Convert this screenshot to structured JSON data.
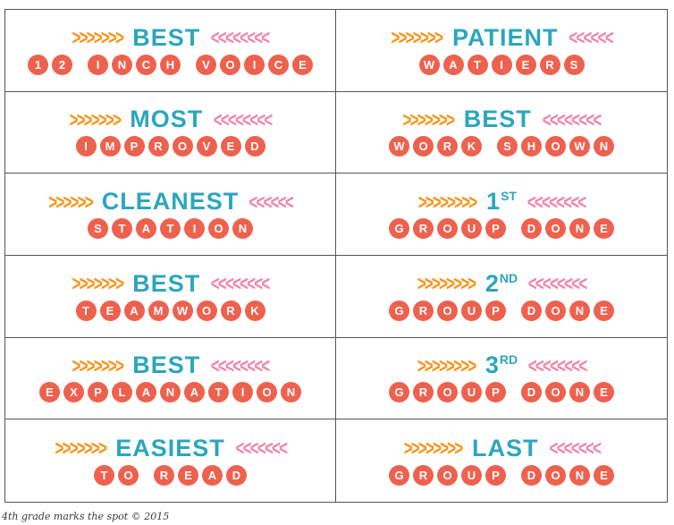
{
  "colors": {
    "teal": "#2ba6bf",
    "orange": "#f7941d",
    "pink": "#f087ac",
    "coral": "#ee614e"
  },
  "footer": {
    "credit": "4th grade marks the spot © 2015"
  },
  "cells": [
    {
      "left_chevrons": ">>>>>>>",
      "title": "BEST",
      "title_sup": "",
      "right_chevrons": "<<<<<<<<",
      "word": "12 INCH VOICE"
    },
    {
      "left_chevrons": ">>>>>>>",
      "title": "PATIENT",
      "title_sup": "",
      "right_chevrons": "<<<<<<",
      "word": "WATIERS"
    },
    {
      "left_chevrons": ">>>>>>>",
      "title": "MOST",
      "title_sup": "",
      "right_chevrons": "<<<<<<<<",
      "word": "IMPROVED"
    },
    {
      "left_chevrons": ">>>>>>>",
      "title": "BEST",
      "title_sup": "",
      "right_chevrons": "<<<<<<<<",
      "word": "WORK SHOWN"
    },
    {
      "left_chevrons": ">>>>>>",
      "title": "CLEANEST",
      "title_sup": "",
      "right_chevrons": "<<<<<<",
      "word": "STATION"
    },
    {
      "left_chevrons": ">>>>>>>>",
      "title": "1",
      "title_sup": "ST",
      "right_chevrons": "<<<<<<<<",
      "word": "GROUP DONE"
    },
    {
      "left_chevrons": ">>>>>>>",
      "title": "BEST",
      "title_sup": "",
      "right_chevrons": "<<<<<<<<",
      "word": "TEAMWORK"
    },
    {
      "left_chevrons": ">>>>>>>>",
      "title": "2",
      "title_sup": "ND",
      "right_chevrons": "<<<<<<<<",
      "word": "GROUP DONE"
    },
    {
      "left_chevrons": ">>>>>>>",
      "title": "BEST",
      "title_sup": "",
      "right_chevrons": "<<<<<<<<",
      "word": "EXPLANATION"
    },
    {
      "left_chevrons": ">>>>>>>>",
      "title": "3",
      "title_sup": "RD",
      "right_chevrons": "<<<<<<<<",
      "word": "GROUP DONE"
    },
    {
      "left_chevrons": ">>>>>>>",
      "title": "EASIEST",
      "title_sup": "",
      "right_chevrons": "<<<<<<<",
      "word": "TO READ"
    },
    {
      "left_chevrons": ">>>>>>>>",
      "title": "LAST",
      "title_sup": "",
      "right_chevrons": "<<<<<<<",
      "word": "GROUP DONE"
    }
  ]
}
